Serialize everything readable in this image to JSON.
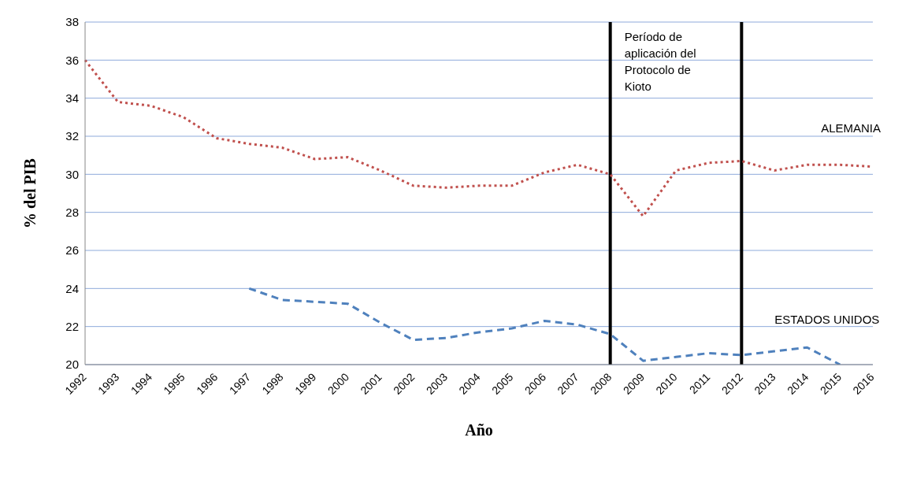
{
  "chart_data": {
    "type": "line",
    "ylabel": "% del PIB",
    "xlabel": "Año",
    "categories": [
      "1992",
      "1993",
      "1994",
      "1995",
      "1996",
      "1997",
      "1998",
      "1999",
      "2000",
      "2001",
      "2002",
      "2003",
      "2004",
      "2005",
      "2006",
      "2007",
      "2008",
      "2009",
      "2010",
      "2011",
      "2012",
      "2013",
      "2014",
      "2015",
      "2016"
    ],
    "series": [
      {
        "name": "ALEMANIA",
        "color": "#c0504d",
        "line_style": "dotted",
        "values": [
          36.0,
          33.8,
          33.6,
          33.0,
          31.9,
          31.6,
          31.4,
          30.8,
          30.9,
          30.2,
          29.4,
          29.3,
          29.4,
          29.4,
          30.1,
          30.5,
          30.0,
          27.8,
          30.2,
          30.6,
          30.7,
          30.2,
          30.5,
          30.5,
          30.4
        ]
      },
      {
        "name": "ESTADOS UNIDOS",
        "color": "#4f81bd",
        "line_style": "dashed",
        "values": [
          null,
          null,
          null,
          null,
          null,
          24.0,
          23.4,
          23.3,
          23.2,
          22.2,
          21.3,
          21.4,
          21.7,
          21.9,
          22.3,
          22.1,
          21.6,
          20.2,
          20.4,
          20.6,
          20.5,
          20.7,
          20.9,
          20.0,
          null
        ]
      }
    ],
    "ylim": [
      20,
      38
    ],
    "yticks": [
      20,
      22,
      24,
      26,
      28,
      30,
      32,
      34,
      36,
      38
    ],
    "grid": "y",
    "legend": false,
    "marker": "none",
    "ref_lines": [
      {
        "axis": "x",
        "value": "2008",
        "color": "#000000"
      },
      {
        "axis": "x",
        "value": "2012",
        "color": "#000000"
      }
    ],
    "annotations": [
      "Período de aplicación del Protocolo de Kioto"
    ]
  }
}
